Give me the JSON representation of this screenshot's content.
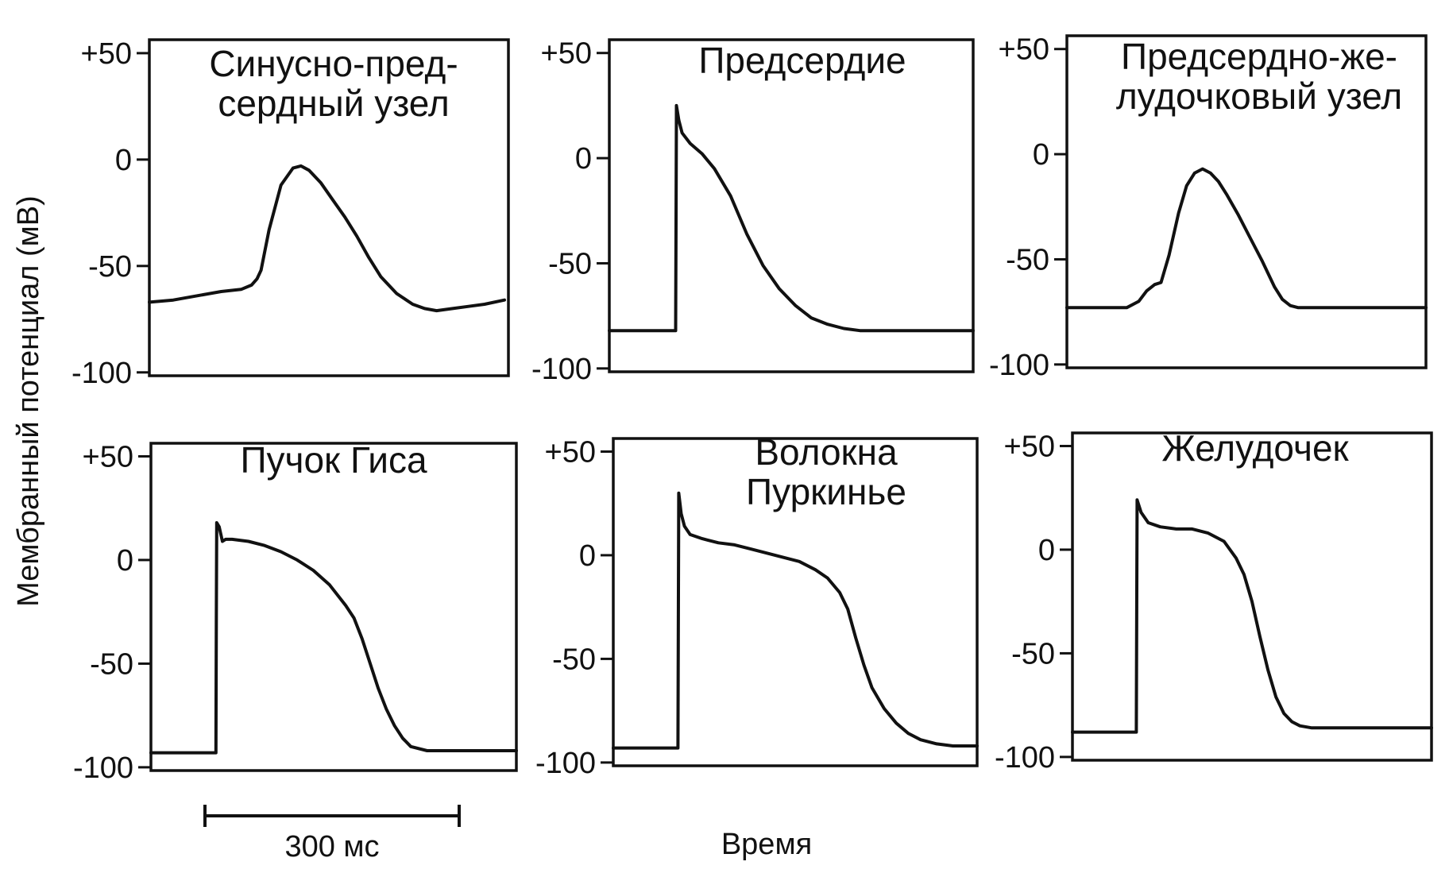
{
  "chart_data": {
    "type": "line",
    "ylabel": "Мембранный потенциал (мВ)",
    "xlabel": "Время",
    "scale_bar_label": "300 мс",
    "scale_bar_ms": 300,
    "ylim": [
      -100,
      50
    ],
    "yticks": [
      50,
      0,
      -50,
      -100
    ],
    "ytick_labels": [
      "+50",
      "0",
      "-50",
      "-100"
    ],
    "xlim_ms": [
      0,
      450
    ],
    "panels": [
      {
        "id": "sa-node",
        "title_lines": [
          "Синусно-пред-",
          "сердный узел"
        ],
        "x": [
          0,
          30,
          60,
          90,
          115,
          128,
          135,
          140,
          150,
          165,
          180,
          190,
          200,
          215,
          230,
          245,
          260,
          275,
          290,
          300,
          310,
          330,
          345,
          360,
          380,
          400,
          420,
          445
        ],
        "y": [
          -67,
          -66,
          -64,
          -62,
          -61,
          -59,
          -56,
          -52,
          -33,
          -12,
          -4,
          -3,
          -5,
          -11,
          -19,
          -27,
          -36,
          -46,
          -55,
          -59,
          -63,
          -68,
          -70,
          -71,
          -70,
          -69,
          -68,
          -66
        ]
      },
      {
        "id": "atrium",
        "title_lines": [
          "Предсердие"
        ],
        "x": [
          0,
          30,
          60,
          82,
          82.5,
          83,
          86,
          90,
          100,
          115,
          130,
          150,
          170,
          190,
          210,
          230,
          250,
          270,
          290,
          310,
          340,
          380,
          420,
          450
        ],
        "y": [
          -82,
          -82,
          -82,
          -82,
          -30,
          25,
          18,
          12,
          7,
          2,
          -5,
          -18,
          -36,
          -51,
          -62,
          -70,
          -76,
          -79,
          -81,
          -82,
          -82,
          -82,
          -82,
          -82
        ]
      },
      {
        "id": "av-node",
        "title_lines": [
          "Предсердно-же-",
          "лудочковый узел"
        ],
        "x": [
          0,
          40,
          75,
          90,
          100,
          110,
          118,
          128,
          140,
          150,
          160,
          170,
          180,
          190,
          200,
          215,
          230,
          245,
          260,
          270,
          280,
          290,
          310,
          340,
          380,
          420,
          450
        ],
        "y": [
          -73,
          -73,
          -73,
          -70,
          -65,
          -62,
          -61,
          -48,
          -28,
          -15,
          -9,
          -7,
          -9,
          -13,
          -19,
          -29,
          -40,
          -51,
          -63,
          -69,
          -72,
          -73,
          -73,
          -73,
          -73,
          -73,
          -73
        ]
      },
      {
        "id": "his-bundle",
        "title_lines": [
          "Пучок Гиса"
        ],
        "x": [
          0,
          40,
          80,
          80.5,
          81,
          84,
          88,
          92,
          100,
          120,
          140,
          160,
          180,
          200,
          220,
          240,
          250,
          260,
          270,
          280,
          290,
          300,
          310,
          320,
          340,
          360,
          380,
          400,
          420,
          450
        ],
        "y": [
          -93,
          -93,
          -93,
          -30,
          18,
          16,
          9,
          10,
          10,
          9,
          7,
          4,
          0,
          -5,
          -12,
          -22,
          -28,
          -38,
          -50,
          -62,
          -72,
          -80,
          -86,
          -90,
          -92,
          -92,
          -92,
          -92,
          -92,
          -92
        ]
      },
      {
        "id": "purkinje",
        "title_lines": [
          "Волокна",
          "Пуркинье"
        ],
        "x": [
          0,
          40,
          80,
          80.5,
          81,
          84,
          88,
          95,
          110,
          130,
          150,
          170,
          190,
          210,
          230,
          250,
          265,
          280,
          290,
          300,
          310,
          320,
          335,
          350,
          365,
          380,
          400,
          420,
          440,
          450
        ],
        "y": [
          -93,
          -93,
          -93,
          -30,
          30,
          20,
          14,
          10,
          8,
          6,
          5,
          3,
          1,
          -1,
          -3,
          -7,
          -11,
          -18,
          -26,
          -40,
          -53,
          -64,
          -74,
          -81,
          -86,
          -89,
          -91,
          -92,
          -92,
          -92
        ]
      },
      {
        "id": "ventricle",
        "title_lines": [
          "Желудочек"
        ],
        "x": [
          0,
          40,
          80,
          80.5,
          81,
          86,
          95,
          110,
          130,
          150,
          170,
          190,
          205,
          215,
          225,
          235,
          245,
          255,
          265,
          275,
          285,
          300,
          320,
          340,
          360,
          380,
          400,
          420,
          450
        ],
        "y": [
          -88,
          -88,
          -88,
          -30,
          24,
          18,
          13,
          11,
          10,
          10,
          8,
          4,
          -4,
          -12,
          -25,
          -42,
          -58,
          -71,
          -79,
          -83,
          -85,
          -86,
          -86,
          -86,
          -86,
          -86,
          -86,
          -86,
          -86
        ]
      }
    ]
  }
}
